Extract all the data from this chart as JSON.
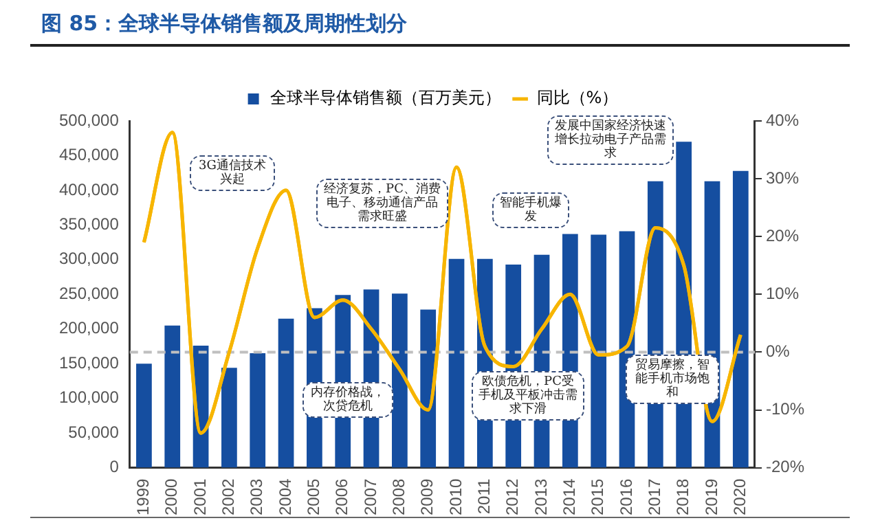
{
  "chart_data": {
    "type": "bar",
    "title": "图 85：全球半导体销售额及周期性划分",
    "categories": [
      "1999",
      "2000",
      "2001",
      "2002",
      "2003",
      "2004",
      "2005",
      "2006",
      "2007",
      "2008",
      "2009",
      "2010",
      "2011",
      "2012",
      "2013",
      "2014",
      "2015",
      "2016",
      "2017",
      "2018",
      "2019",
      "2020"
    ],
    "series": [
      {
        "name": "全球半导体销售额（百万美元）",
        "type": "bar",
        "color": "#154ea0",
        "values": [
          150000,
          205000,
          176000,
          144000,
          165000,
          215000,
          230000,
          249000,
          257000,
          251000,
          228000,
          301000,
          301000,
          293000,
          307000,
          337000,
          336000,
          341000,
          413000,
          470000,
          413000,
          428000
        ]
      },
      {
        "name": "同比（%）",
        "type": "line",
        "axis": "y2",
        "color": "#f7b500",
        "values": [
          19,
          38,
          -14,
          0,
          18,
          28,
          6,
          9,
          4,
          -3,
          -10,
          32,
          1,
          -2.5,
          4,
          10,
          -0.5,
          1,
          21.5,
          15,
          -12,
          3
        ]
      }
    ],
    "ylim": [
      0,
      500000
    ],
    "yticks": [
      {
        "value": 0,
        "label": "0"
      },
      {
        "value": 50000,
        "label": "50,000"
      },
      {
        "value": 100000,
        "label": "100,000"
      },
      {
        "value": 150000,
        "label": "150,000"
      },
      {
        "value": 200000,
        "label": "200,000"
      },
      {
        "value": 250000,
        "label": "250,000"
      },
      {
        "value": 300000,
        "label": "300,000"
      },
      {
        "value": 350000,
        "label": "350,000"
      },
      {
        "value": 400000,
        "label": "400,000"
      },
      {
        "value": 450000,
        "label": "450,000"
      },
      {
        "value": 500000,
        "label": "500,000"
      }
    ],
    "y2lim": [
      -20,
      40
    ],
    "y2ticks": [
      {
        "value": -20,
        "label": "-20%"
      },
      {
        "value": -10,
        "label": "-10%"
      },
      {
        "value": 0,
        "label": "0%"
      },
      {
        "value": 10,
        "label": "10%"
      },
      {
        "value": 20,
        "label": "20%"
      },
      {
        "value": 30,
        "label": "30%"
      },
      {
        "value": 40,
        "label": "40%"
      }
    ],
    "ref_lines": [
      {
        "axis": "y2",
        "value": 0,
        "color": "#bfbfbf",
        "line_style": "dashed"
      }
    ],
    "annotations": [
      "3G通信技术兴起",
      "经济复苏，PC、消费电子、移动通信产品需求旺盛",
      "内存价格战，次贷危机",
      "欧债危机，PC受手机及平板冲击需求下滑",
      "智能手机爆发",
      "发展中国家经济快速增长拉动电子产品需求",
      "贸易摩擦，智能手机市场饱和"
    ],
    "legend": "top",
    "grid": false,
    "marker": "none",
    "line_style": "solid"
  }
}
